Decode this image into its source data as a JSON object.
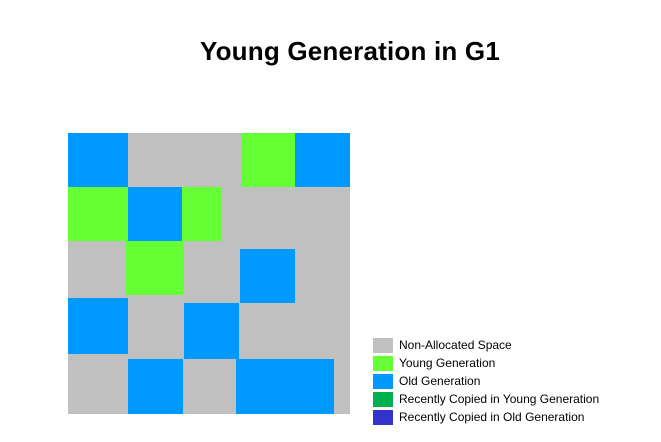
{
  "title": "Young Generation in G1",
  "colors": {
    "non_allocated": "#c0c0c0",
    "young": "#66ff33",
    "old": "#0099ff",
    "recent_young": "#00b050",
    "recent_old": "#3333cc"
  },
  "regions": {
    "old": "Old Generation",
    "young": "Young Generation"
  },
  "legend": {
    "items": [
      {
        "label": "Non-Allocated Space",
        "color": "#c0c0c0"
      },
      {
        "label": "Young Generation",
        "color": "#66ff33"
      },
      {
        "label": "Old Generation",
        "color": "#0099ff"
      },
      {
        "label": "Recently Copied in Young Generation",
        "color": "#00b050"
      },
      {
        "label": "Recently Copied in Old Generation",
        "color": "#3333cc"
      }
    ]
  }
}
